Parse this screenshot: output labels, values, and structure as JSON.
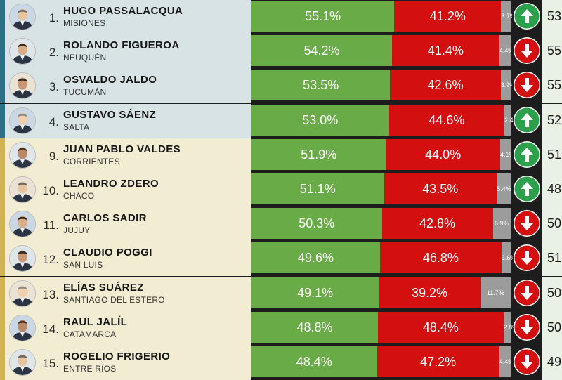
{
  "colors": {
    "approve": "#69ab46",
    "disapprove": "#d30f0f",
    "other": "#9c9c9c",
    "trend_up": "#2ca04a",
    "trend_down": "#d30f0f",
    "tier_a_bg": "#d8e3e6",
    "tier_b_bg": "#f2ecd2"
  },
  "rows": [
    {
      "rank": "1.",
      "name": "HUGO PASSALACQUA",
      "province": "MISIONES",
      "approve": 55.1,
      "approve_label": "55.1%",
      "disapprove": 41.2,
      "disapprove_label": "41.2%",
      "other": 3.7,
      "other_label": "3.7%",
      "trend": "up",
      "trend_icon": "arrow-up-icon",
      "prev": "53",
      "tier": "a"
    },
    {
      "rank": "2.",
      "name": "ROLANDO FIGUEROA",
      "province": "NEUQUÉN",
      "approve": 54.2,
      "approve_label": "54.2%",
      "disapprove": 41.4,
      "disapprove_label": "41.4%",
      "other": 4.4,
      "other_label": "4.4%",
      "trend": "down",
      "trend_icon": "arrow-down-icon",
      "prev": "55",
      "tier": "a"
    },
    {
      "rank": "3.",
      "name": "OSVALDO JALDO",
      "province": "TUCUMÁN",
      "approve": 53.5,
      "approve_label": "53.5%",
      "disapprove": 42.6,
      "disapprove_label": "42.6%",
      "other": 3.9,
      "other_label": "3.9%",
      "trend": "down",
      "trend_icon": "arrow-down-icon",
      "prev": "55",
      "tier": "a"
    },
    {
      "rank": "4.",
      "name": "GUSTAVO SÁENZ",
      "province": "SALTA",
      "approve": 53.0,
      "approve_label": "53.0%",
      "disapprove": 44.6,
      "disapprove_label": "44.6%",
      "other": 2.4,
      "other_label": "2.4%",
      "trend": "up",
      "trend_icon": "arrow-up-icon",
      "prev": "52",
      "tier": "a"
    },
    {
      "rank": "9.",
      "name": "JUAN PABLO VALDES",
      "province": "CORRIENTES",
      "approve": 51.9,
      "approve_label": "51.9%",
      "disapprove": 44.0,
      "disapprove_label": "44.0%",
      "other": 4.1,
      "other_label": "4.1%",
      "trend": "up",
      "trend_icon": "arrow-up-icon",
      "prev": "51",
      "tier": "b"
    },
    {
      "rank": "10.",
      "name": "LEANDRO ZDERO",
      "province": "CHACO",
      "approve": 51.1,
      "approve_label": "51.1%",
      "disapprove": 43.5,
      "disapprove_label": "43.5%",
      "other": 5.4,
      "other_label": "5.4%",
      "trend": "up",
      "trend_icon": "arrow-up-icon",
      "prev": "48",
      "tier": "b"
    },
    {
      "rank": "11.",
      "name": "CARLOS SADIR",
      "province": "JUJUY",
      "approve": 50.3,
      "approve_label": "50.3%",
      "disapprove": 42.8,
      "disapprove_label": "42.8%",
      "other": 6.9,
      "other_label": "6.9%",
      "trend": "down",
      "trend_icon": "arrow-down-icon",
      "prev": "50",
      "tier": "b"
    },
    {
      "rank": "12.",
      "name": "CLAUDIO POGGI",
      "province": "SAN LUIS",
      "approve": 49.6,
      "approve_label": "49.6%",
      "disapprove": 46.8,
      "disapprove_label": "46.8%",
      "other": 3.6,
      "other_label": "3.6%",
      "trend": "down",
      "trend_icon": "arrow-down-icon",
      "prev": "51",
      "tier": "b"
    },
    {
      "rank": "13.",
      "name": "ELÍAS SUÁREZ",
      "province": "SANTIAGO DEL ESTERO",
      "approve": 49.1,
      "approve_label": "49.1%",
      "disapprove": 39.2,
      "disapprove_label": "39.2%",
      "other": 11.7,
      "other_label": "11.7%",
      "trend": "down",
      "trend_icon": "arrow-down-icon",
      "prev": "50",
      "tier": "b"
    },
    {
      "rank": "14.",
      "name": "RAUL JALÍL",
      "province": "CATAMARCA",
      "approve": 48.8,
      "approve_label": "48.8%",
      "disapprove": 48.4,
      "disapprove_label": "48.4%",
      "other": 2.8,
      "other_label": "2.8%",
      "trend": "down",
      "trend_icon": "arrow-down-icon",
      "prev": "50",
      "tier": "b"
    },
    {
      "rank": "15.",
      "name": "ROGELIO FRIGERIO",
      "province": "ENTRE RÍOS",
      "approve": 48.4,
      "approve_label": "48.4%",
      "disapprove": 47.2,
      "disapprove_label": "47.2%",
      "other": 4.4,
      "other_label": "4.4%",
      "trend": "down",
      "trend_icon": "arrow-down-icon",
      "prev": "49",
      "tier": "b"
    }
  ]
}
